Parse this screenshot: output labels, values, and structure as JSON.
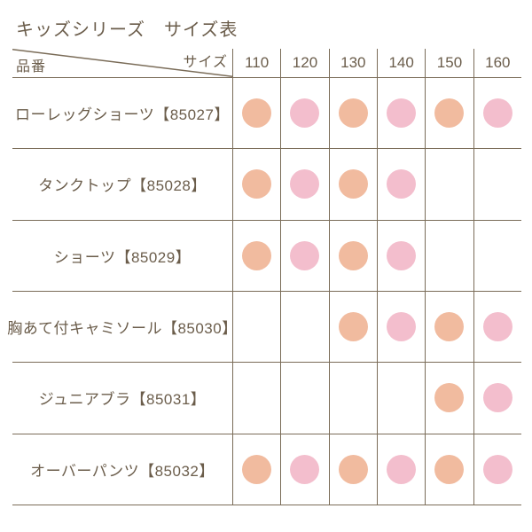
{
  "title": "キッズシリーズ　サイズ表",
  "corner": {
    "size_label": "サイズ",
    "product_label": "品番"
  },
  "chart_data": {
    "type": "table",
    "title": "キッズシリーズ　サイズ表",
    "column_header_label": "サイズ",
    "row_header_label": "品番",
    "columns": [
      "110",
      "120",
      "130",
      "140",
      "150",
      "160"
    ],
    "rows": [
      {
        "label": "ローレッグショーツ【85027】",
        "available": [
          true,
          true,
          true,
          true,
          true,
          true
        ]
      },
      {
        "label": "タンクトップ【85028】",
        "available": [
          true,
          true,
          true,
          true,
          false,
          false
        ]
      },
      {
        "label": "ショーツ【85029】",
        "available": [
          true,
          true,
          true,
          true,
          false,
          false
        ]
      },
      {
        "label": "胸あて付キャミソール【85030】",
        "available": [
          false,
          false,
          true,
          true,
          true,
          true
        ]
      },
      {
        "label": "ジュニアブラ【85031】",
        "available": [
          false,
          false,
          false,
          false,
          true,
          true
        ]
      },
      {
        "label": "オーバーパンツ【85032】",
        "available": [
          true,
          true,
          true,
          true,
          true,
          true
        ]
      }
    ]
  },
  "colors": {
    "dot_odd_column": "#f1bb9f",
    "dot_even_column": "#f3becd",
    "text": "#6b5d4b",
    "grid_line": "#7a6c58",
    "background": "#ffffff"
  }
}
